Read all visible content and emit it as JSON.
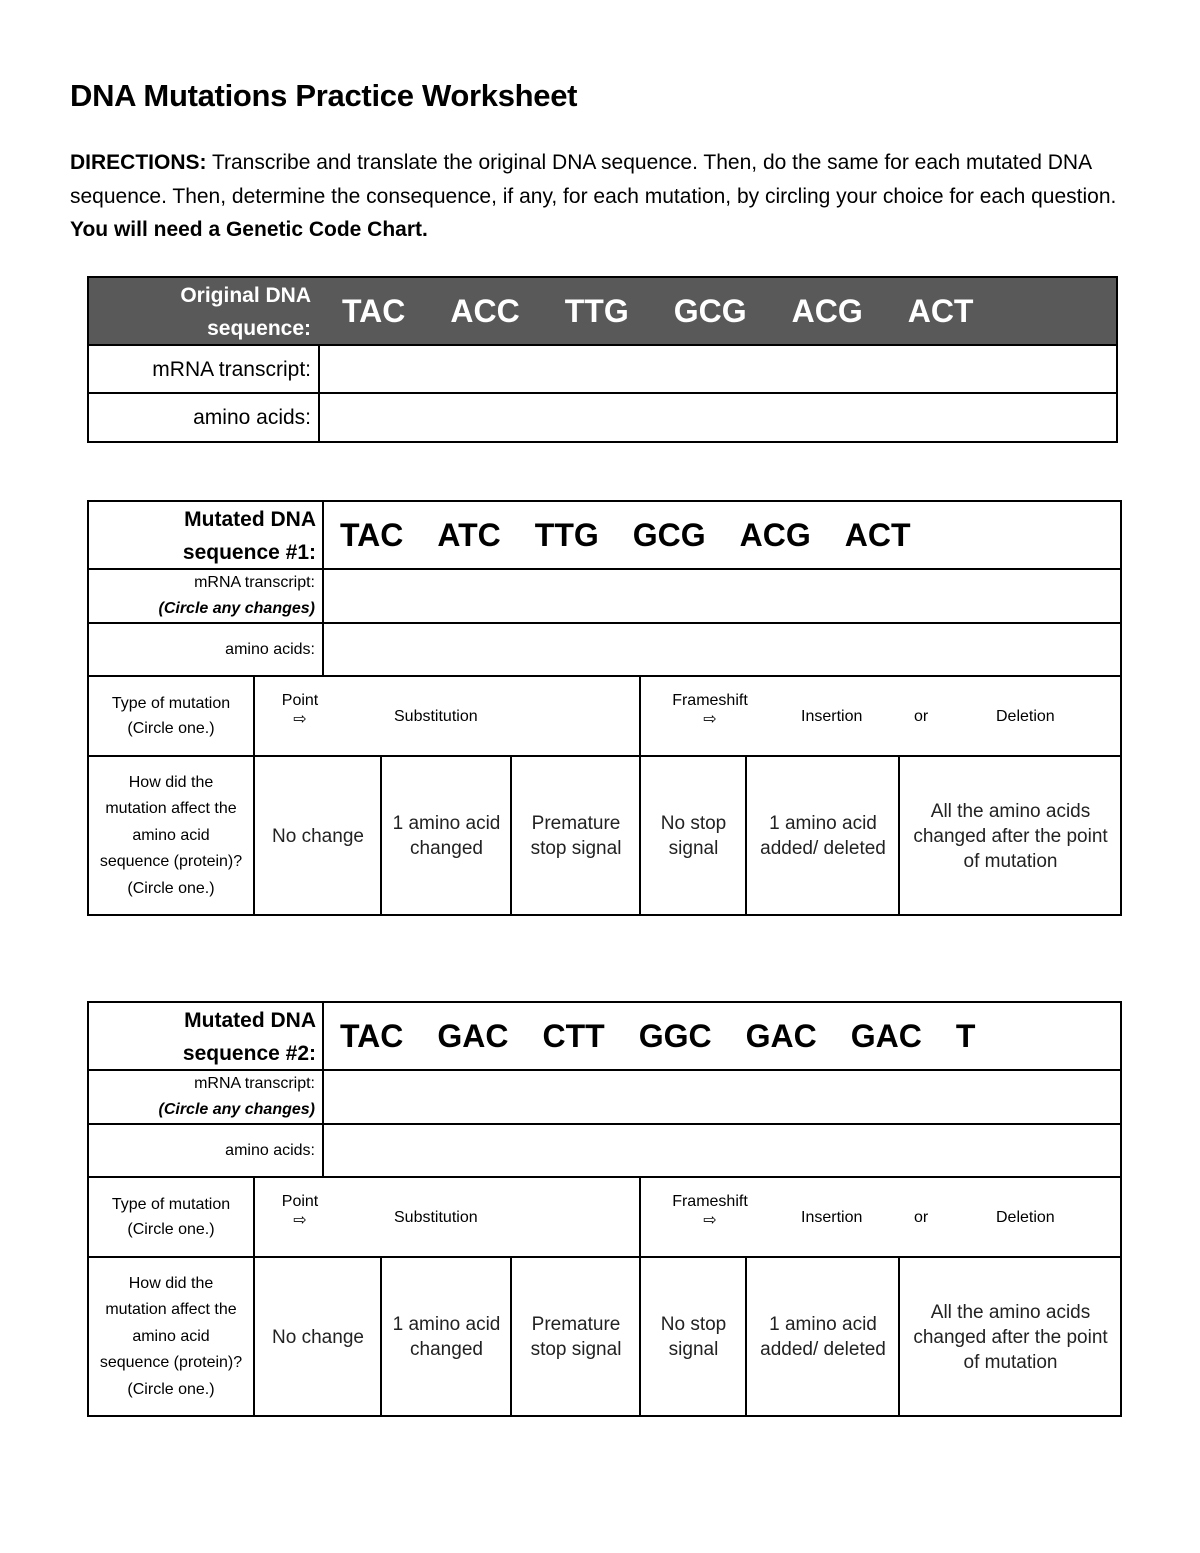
{
  "title": "DNA Mutations Practice Worksheet",
  "directions": {
    "label": "DIRECTIONS:",
    "text": " Transcribe and translate the original DNA sequence. Then, do the same for each mutated DNA sequence. Then, determine the consequence, if any, for each mutation, by circling your choice for each question. ",
    "emphasis": "You will need a Genetic Code Chart."
  },
  "original": {
    "label": "Original DNA sequence:",
    "codons": [
      "TAC",
      "ACC",
      "TTG",
      "GCG",
      "ACG",
      "ACT"
    ],
    "mrna_label": "mRNA transcript:",
    "amino_label": "amino acids:",
    "header_color": "#595959"
  },
  "mutations": [
    {
      "label": "Mutated DNA sequence #1:",
      "codons": [
        "TAC",
        "ATC",
        "TTG",
        "GCG",
        "ACG",
        "ACT"
      ]
    },
    {
      "label": "Mutated DNA sequence #2:",
      "codons": [
        "TAC",
        "GAC",
        "CTT",
        "GGC",
        "GAC",
        "GAC",
        "T"
      ]
    }
  ],
  "mutation_table": {
    "mrna_label": "mRNA transcript:",
    "mrna_note": "(Circle any changes)",
    "amino_label": "amino acids:",
    "type_label": "Type of mutation (Circle one.)",
    "point_label": "Point",
    "arrow": "⇨",
    "substitution": "Substitution",
    "frameshift_label": "Frameshift",
    "insertion": "Insertion",
    "or": "or",
    "deletion": "Deletion",
    "effect_label": "How did the mutation affect the amino acid sequence (protein)? (Circle one.)",
    "effects": [
      "No change",
      "1 amino acid changed",
      "Premature stop signal",
      "No stop signal",
      "1 amino acid added/ deleted",
      "All the amino acids changed after the point of mutation"
    ]
  }
}
